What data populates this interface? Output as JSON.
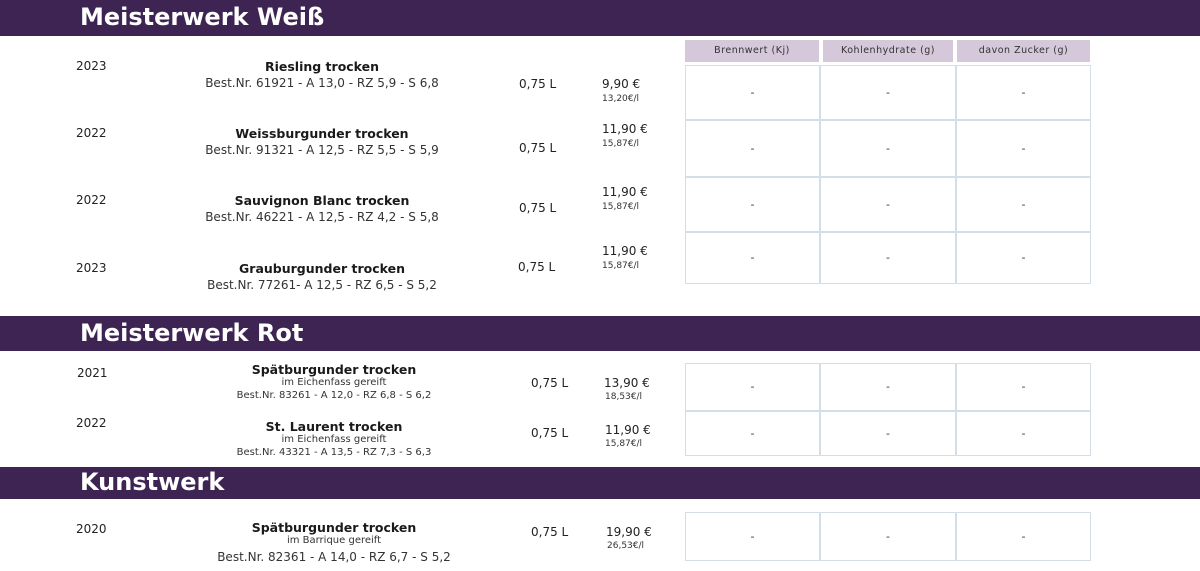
{
  "sections": [
    {
      "title": "Meisterwerk Weiß"
    },
    {
      "title": "Meisterwerk Rot"
    },
    {
      "title": "Kunstwerk"
    }
  ],
  "nutrition_headers": [
    "Brennwert (Kj)",
    "Kohlenhydrate (g)",
    "davon Zucker (g)"
  ],
  "wines": [
    {
      "year": "2023",
      "name": "Riesling trocken",
      "note": "",
      "best": "Best.Nr. 61921 - A 13,0 - RZ 5,9  - S 6,8",
      "volume": "0,75 L",
      "price": "9,90 €",
      "per_liter": "13,20€/l",
      "brennwert": "-",
      "kohlenhydrate": "-",
      "zucker": "-"
    },
    {
      "year": "2022",
      "name": "Weissburgunder trocken",
      "note": "",
      "best": "Best.Nr. 91321 - A 12,5 - RZ 5,5 - S 5,9",
      "volume": "0,75 L",
      "price": "11,90 €",
      "per_liter": "15,87€/l",
      "brennwert": "-",
      "kohlenhydrate": "-",
      "zucker": "-"
    },
    {
      "year": "2022",
      "name": "Sauvignon Blanc trocken",
      "note": "",
      "best": "Best.Nr. 46221 - A 12,5 - RZ 4,2 - S 5,8",
      "volume": "0,75 L",
      "price": "11,90 €",
      "per_liter": "15,87€/l",
      "brennwert": "-",
      "kohlenhydrate": "-",
      "zucker": "-"
    },
    {
      "year": "2023",
      "name": "Grauburgunder trocken",
      "note": "",
      "best": "Best.Nr. 77261- A 12,5 - RZ 6,5 - S 5,2",
      "volume": "0,75  L",
      "price": "11,90 €",
      "per_liter": "15,87€/l",
      "brennwert": "-",
      "kohlenhydrate": "-",
      "zucker": "-"
    },
    {
      "year": "2021",
      "name": "Spätburgunder trocken",
      "note": "im Eichenfass gereift",
      "best": "Best.Nr. 83261 - A 12,0 - RZ 6,8  - S 6,2",
      "volume": "0,75 L",
      "price": "13,90 €",
      "per_liter": "18,53€/l",
      "brennwert": "-",
      "kohlenhydrate": "-",
      "zucker": "-"
    },
    {
      "year": "2022",
      "name": "St. Laurent trocken",
      "note": "im Eichenfass gereift",
      "best": "Best.Nr. 43321 - A 13,5 - RZ 7,3 - S 6,3",
      "volume": "0,75 L",
      "price": "11,90 €",
      "per_liter": "15,87€/l",
      "brennwert": "-",
      "kohlenhydrate": "-",
      "zucker": "-"
    },
    {
      "year": "2020",
      "name": "Spätburgunder trocken",
      "note": "im Barrique gereift",
      "best": "Best.Nr. 82361 - A 14,0 - RZ 6,7  - S 5,2",
      "volume": "0,75 L",
      "price": "19,90 €",
      "per_liter": "26,53€/l",
      "brennwert": "-",
      "kohlenhydrate": "-",
      "zucker": "-"
    }
  ]
}
